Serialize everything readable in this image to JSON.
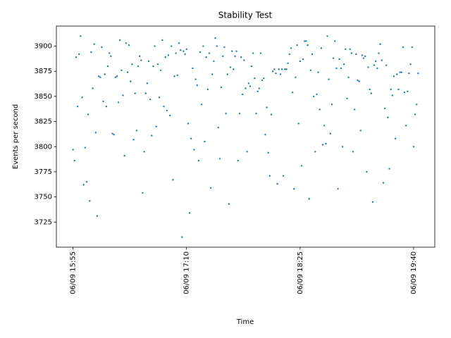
{
  "chart_data": {
    "type": "scatter",
    "title": "Stability Test",
    "x_label": "Time",
    "y_label": "Events per second",
    "color": "#1f77b4",
    "x": [
      "06/09 15:55",
      "06/09 15:56",
      "06/09 15:57",
      "06/09 15:58",
      "06/09 15:59",
      "06/09 16:00",
      "06/09 16:01",
      "06/09 16:02",
      "06/09 16:03",
      "06/09 16:04",
      "06/09 16:05",
      "06/09 16:06",
      "06/09 16:07",
      "06/09 16:08",
      "06/09 16:09",
      "06/09 16:10",
      "06/09 16:11",
      "06/09 16:12",
      "06/09 16:13",
      "06/09 16:14",
      "06/09 16:15",
      "06/09 16:16",
      "06/09 16:17",
      "06/09 16:18",
      "06/09 16:19",
      "06/09 16:20",
      "06/09 16:21",
      "06/09 16:22",
      "06/09 16:23",
      "06/09 16:24",
      "06/09 16:25",
      "06/09 16:26",
      "06/09 16:27",
      "06/09 16:28",
      "06/09 16:29",
      "06/09 16:30",
      "06/09 16:31",
      "06/09 16:32",
      "06/09 16:33",
      "06/09 16:34",
      "06/09 16:35",
      "06/09 16:36",
      "06/09 16:37",
      "06/09 16:38",
      "06/09 16:39",
      "06/09 16:40",
      "06/09 16:41",
      "06/09 16:42",
      "06/09 16:43",
      "06/09 16:44",
      "06/09 16:45",
      "06/09 16:46",
      "06/09 16:47",
      "06/09 16:48",
      "06/09 16:49",
      "06/09 16:50",
      "06/09 16:51",
      "06/09 16:52",
      "06/09 16:53",
      "06/09 16:54",
      "06/09 16:55",
      "06/09 16:56",
      "06/09 16:57",
      "06/09 16:58",
      "06/09 16:59",
      "06/09 17:00",
      "06/09 17:01",
      "06/09 17:02",
      "06/09 17:03",
      "06/09 17:04",
      "06/09 17:05",
      "06/09 17:06",
      "06/09 17:07",
      "06/09 17:08",
      "06/09 17:09",
      "06/09 17:10",
      "06/09 17:11",
      "06/09 17:12",
      "06/09 17:13",
      "06/09 17:14",
      "06/09 17:15",
      "06/09 17:16",
      "06/09 17:17",
      "06/09 17:18",
      "06/09 17:19",
      "06/09 17:20",
      "06/09 17:21",
      "06/09 17:22",
      "06/09 17:23",
      "06/09 17:24",
      "06/09 17:25",
      "06/09 17:26",
      "06/09 17:27",
      "06/09 17:28",
      "06/09 17:29",
      "06/09 17:30",
      "06/09 17:31",
      "06/09 17:32",
      "06/09 17:33",
      "06/09 17:34",
      "06/09 17:35",
      "06/09 17:36",
      "06/09 17:37",
      "06/09 17:38",
      "06/09 17:39",
      "06/09 17:40",
      "06/09 17:41",
      "06/09 17:42",
      "06/09 17:43",
      "06/09 17:44",
      "06/09 17:45",
      "06/09 17:46",
      "06/09 17:47",
      "06/09 17:48",
      "06/09 17:49",
      "06/09 17:50",
      "06/09 17:51",
      "06/09 17:52",
      "06/09 17:53",
      "06/09 17:54",
      "06/09 17:55",
      "06/09 17:56",
      "06/09 17:57",
      "06/09 17:58",
      "06/09 17:59",
      "06/09 18:00",
      "06/09 18:01",
      "06/09 18:02",
      "06/09 18:03",
      "06/09 18:04",
      "06/09 18:05",
      "06/09 18:06",
      "06/09 18:07",
      "06/09 18:08",
      "06/09 18:09",
      "06/09 18:10",
      "06/09 18:11",
      "06/09 18:12",
      "06/09 18:13",
      "06/09 18:14",
      "06/09 18:15",
      "06/09 18:16",
      "06/09 18:17",
      "06/09 18:18",
      "06/09 18:19",
      "06/09 18:20",
      "06/09 18:21",
      "06/09 18:22",
      "06/09 18:23",
      "06/09 18:24",
      "06/09 18:25",
      "06/09 18:26",
      "06/09 18:27",
      "06/09 18:28",
      "06/09 18:29",
      "06/09 18:30",
      "06/09 18:31",
      "06/09 18:32",
      "06/09 18:33",
      "06/09 18:34",
      "06/09 18:35",
      "06/09 18:36",
      "06/09 18:37",
      "06/09 18:38",
      "06/09 18:39",
      "06/09 18:40",
      "06/09 18:41",
      "06/09 18:42",
      "06/09 18:43",
      "06/09 18:44",
      "06/09 18:45",
      "06/09 18:46",
      "06/09 18:47",
      "06/09 18:48",
      "06/09 18:49",
      "06/09 18:50",
      "06/09 18:51",
      "06/09 18:52",
      "06/09 18:53",
      "06/09 18:54",
      "06/09 18:55",
      "06/09 18:56",
      "06/09 18:57",
      "06/09 18:58",
      "06/09 18:59",
      "06/09 19:00",
      "06/09 19:01",
      "06/09 19:02",
      "06/09 19:03",
      "06/09 19:04",
      "06/09 19:05",
      "06/09 19:06",
      "06/09 19:07",
      "06/09 19:08",
      "06/09 19:09",
      "06/09 19:10",
      "06/09 19:11",
      "06/09 19:12",
      "06/09 19:13",
      "06/09 19:14",
      "06/09 19:15",
      "06/09 19:16",
      "06/09 19:17",
      "06/09 19:18",
      "06/09 19:19",
      "06/09 19:20",
      "06/09 19:21",
      "06/09 19:22",
      "06/09 19:23",
      "06/09 19:24",
      "06/09 19:25",
      "06/09 19:26",
      "06/09 19:27",
      "06/09 19:28",
      "06/09 19:29",
      "06/09 19:30",
      "06/09 19:31",
      "06/09 19:32",
      "06/09 19:33",
      "06/09 19:34",
      "06/09 19:35",
      "06/09 19:36",
      "06/09 19:37",
      "06/09 19:38",
      "06/09 19:39",
      "06/09 19:40",
      "06/09 19:41",
      "06/09 19:42",
      "06/09 19:43"
    ],
    "values": [
      3797,
      3786,
      3889,
      3840,
      3892,
      3910,
      3849,
      3762,
      3799,
      3765,
      3832,
      3746,
      3894,
      3858,
      3902,
      3814,
      3731,
      3870,
      3869,
      3899,
      3845,
      3872,
      3840,
      3880,
      3893,
      3890,
      3813,
      3812,
      3869,
      3870,
      3844,
      3906,
      3876,
      3851,
      3791,
      3903,
      3874,
      3901,
      3865,
      3882,
      3807,
      3853,
      3816,
      3880,
      3890,
      3886,
      3754,
      3795,
      3853,
      3863,
      3885,
      3847,
      3811,
      3880,
      3900,
      3820,
      3882,
      3849,
      3876,
      3906,
      3840,
      3889,
      3836,
      3891,
      3831,
      3900,
      3767,
      3870,
      3893,
      3871,
      3903,
      3896,
      3710,
      3895,
      3892,
      3897,
      3823,
      3734,
      3808,
      3878,
      3797,
      3867,
      3861,
      3786,
      3894,
      3842,
      3900,
      3805,
      3889,
      3857,
      3893,
      3759,
      3872,
      3885,
      3908,
      3900,
      3819,
      3788,
      3859,
      3890,
      3899,
      3833,
      3872,
      3743,
      3879,
      3895,
      3877,
      3890,
      3895,
      3786,
      3833,
      3889,
      3852,
      3886,
      3858,
      3795,
      3863,
      3860,
      3880,
      3893,
      3868,
      3833,
      3855,
      3858,
      3893,
      3866,
      3868,
      3812,
      3839,
      3794,
      3771,
      3832,
      3875,
      3877,
      3873,
      3763,
      3877,
      3872,
      3877,
      3771,
      3877,
      3877,
      3883,
      3892,
      3898,
      3854,
      3758,
      3869,
      3901,
      3823,
      3885,
      3781,
      3887,
      3905,
      3905,
      3901,
      3748,
      3876,
      3892,
      3850,
      3795,
      3852,
      3874,
      3837,
      3898,
      3802,
      3821,
      3803,
      3910,
      3867,
      3813,
      3842,
      3888,
      3905,
      3878,
      3758,
      3887,
      3878,
      3800,
      3882,
      3897,
      3848,
      3869,
      3897,
      3893,
      3795,
      3837,
      3892,
      3866,
      3865,
      3816,
      3891,
      3888,
      3890,
      3775,
      3879,
      3857,
      3853,
      3745,
      3881,
      3885,
      3878,
      3893,
      3902,
      3886,
      3764,
      3838,
      3881,
      3829,
      3778,
      3857,
      3851,
      3870,
      3808,
      3872,
      3857,
      3874,
      3874,
      3899,
      3854,
      3821,
      3855,
      3873,
      3882,
      3899,
      3800,
      3832,
      3842,
      3873
    ],
    "xlim": [
      "06/09 15:44",
      "06/09 19:54"
    ],
    "xticks": [
      "06/09 15:55",
      "06/09 17:10",
      "06/09 18:25",
      "06/09 19:40"
    ],
    "ylim": [
      3700,
      3920
    ],
    "yticks": [
      3725,
      3750,
      3775,
      3800,
      3825,
      3850,
      3875,
      3900
    ],
    "grid": false
  }
}
